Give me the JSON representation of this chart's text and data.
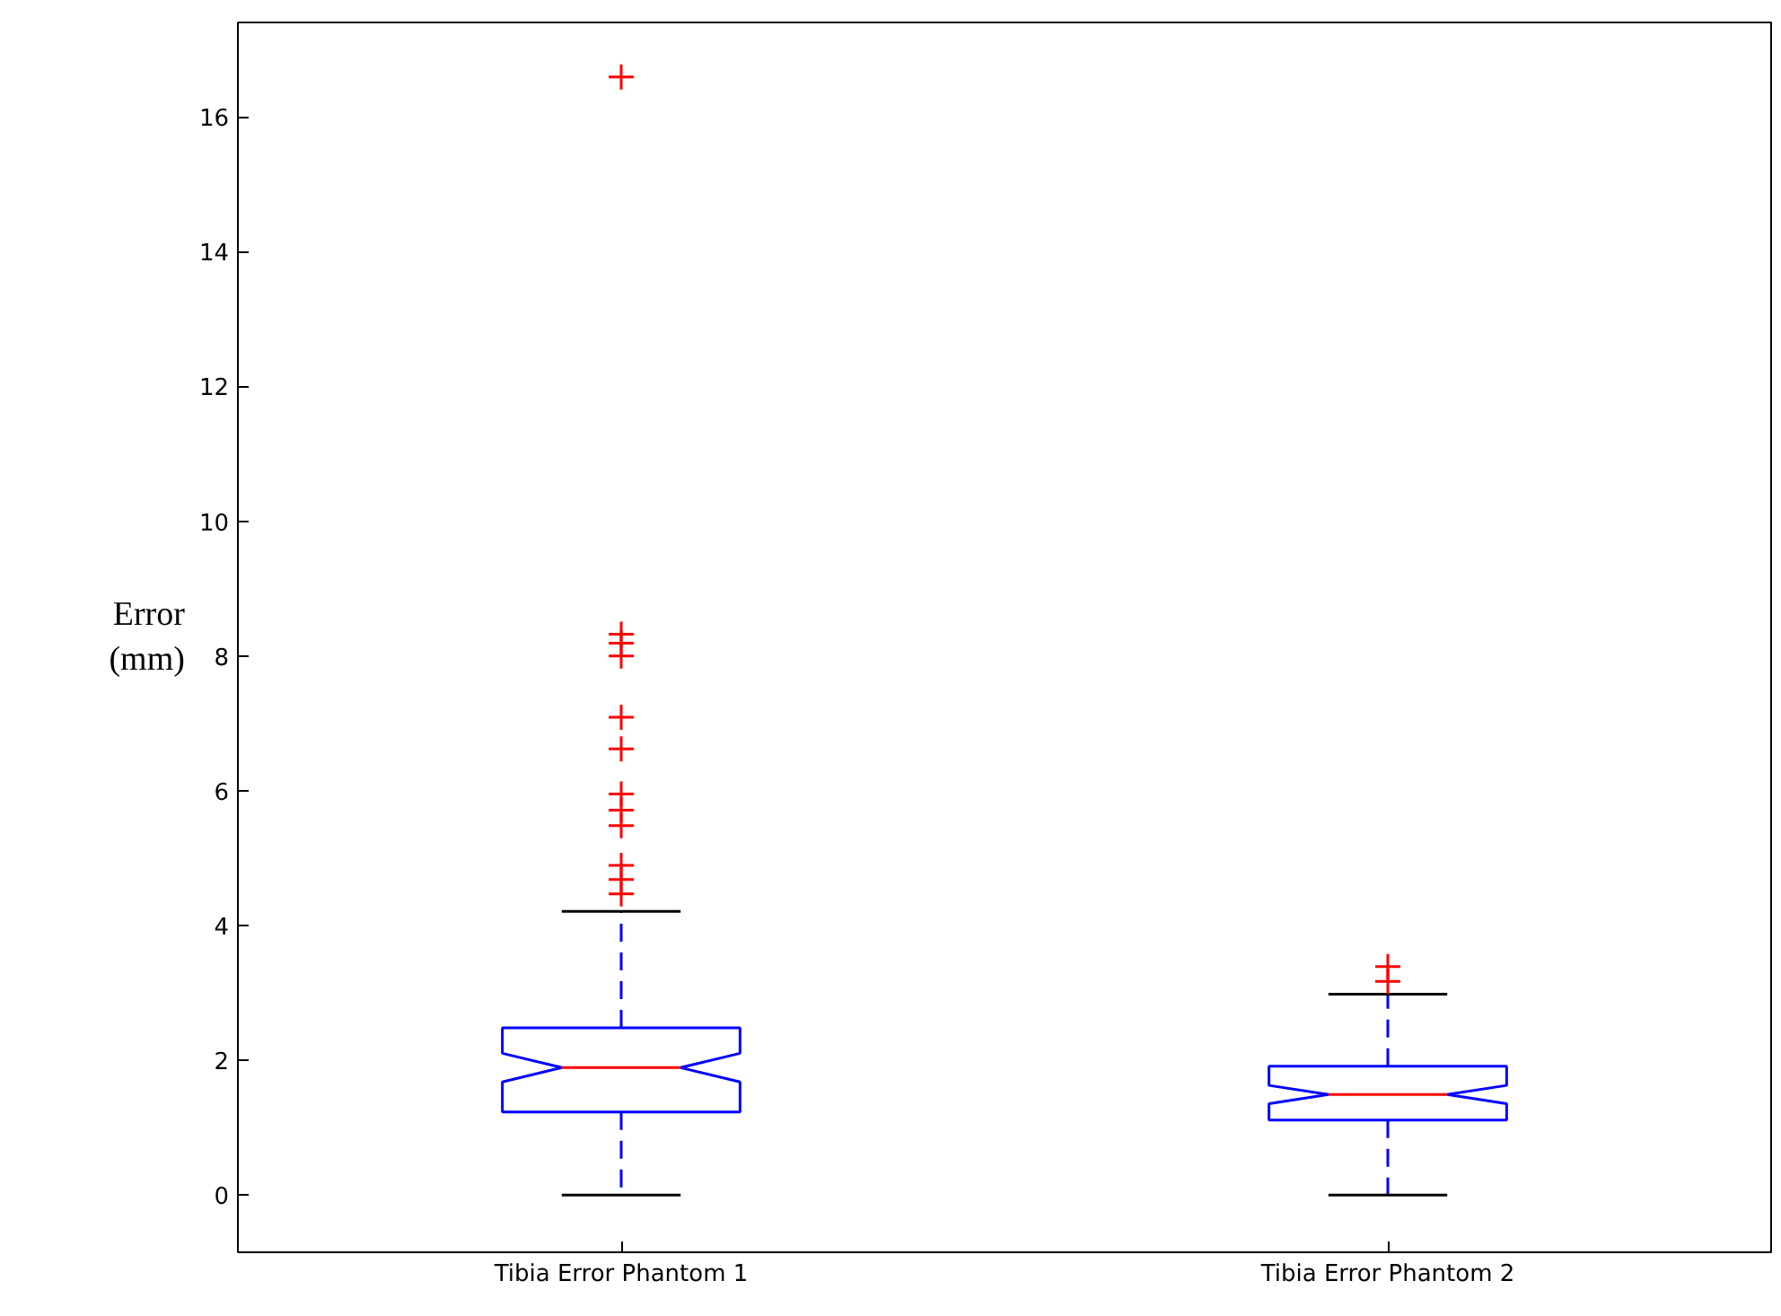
{
  "chart_data": {
    "type": "box",
    "ylabel": "Error\n(mm)",
    "categories": [
      "Tibia Error Phantom 1",
      "Tibia Error Phantom 2"
    ],
    "boxes": [
      {
        "low": 0,
        "q1": 1.23,
        "median": 1.89,
        "q3": 2.48,
        "high": 4.21,
        "outliers": [
          4.47,
          4.68,
          4.89,
          5.48,
          5.71,
          5.95,
          6.62,
          7.09,
          8.0,
          8.19,
          8.32,
          16.59
        ]
      },
      {
        "low": 0,
        "q1": 1.11,
        "median": 1.49,
        "q3": 1.91,
        "high": 2.98,
        "outliers": [
          3.17,
          3.39
        ]
      }
    ],
    "color": "#0000ff",
    "marker": "cross",
    "ylim": [
      -0.85,
      17.4
    ],
    "yticks": [
      0,
      2,
      4,
      6,
      8,
      10,
      12,
      14,
      16
    ],
    "grid": false
  }
}
